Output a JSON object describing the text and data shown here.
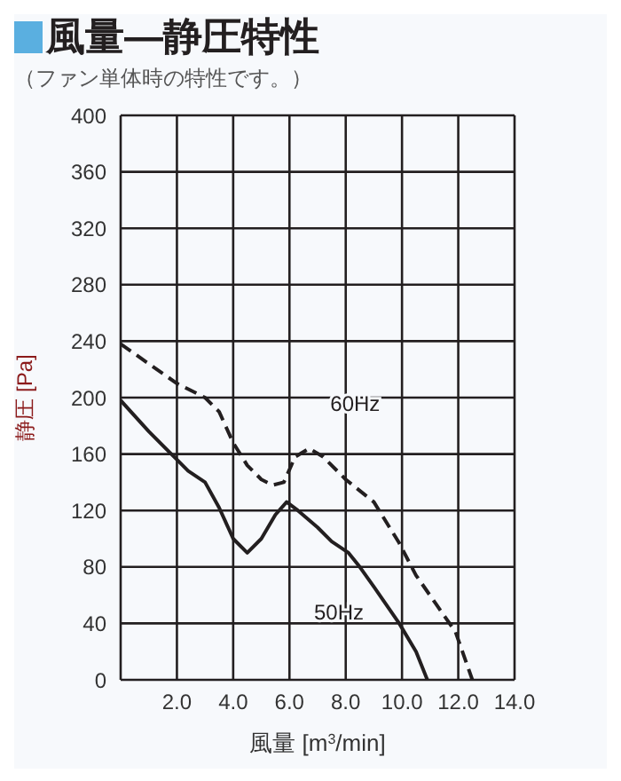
{
  "chart_data": {
    "type": "line",
    "title": "風量—静圧特性",
    "subtitle": "（ファン単体時の特性です。）",
    "xlabel": "風量 [m$^{3}$/min]",
    "ylabel": "静圧 [Pa]",
    "xlim": [
      0,
      14
    ],
    "xticks": [
      {
        "value": 0,
        "label": null
      },
      {
        "value": 2,
        "label": "2.0"
      },
      {
        "value": 4,
        "label": "4.0"
      },
      {
        "value": 6,
        "label": "6.0"
      },
      {
        "value": 8,
        "label": "8.0"
      },
      {
        "value": 10,
        "label": "10.0"
      },
      {
        "value": 12,
        "label": "12.0"
      },
      {
        "value": 14,
        "label": "14.0"
      }
    ],
    "ylim": [
      0,
      400
    ],
    "yticks": [
      0,
      40,
      80,
      120,
      160,
      200,
      240,
      280,
      320,
      360,
      400
    ],
    "grid": true,
    "legend": false,
    "marker": "none",
    "series": [
      {
        "name": "60Hz",
        "color": "#231f20",
        "line_style": "dashed",
        "x": [
          0,
          1,
          2,
          3,
          3.5,
          4,
          4.5,
          5,
          5.4,
          5.8,
          6.2,
          6.7,
          7.2,
          8,
          9,
          9.9,
          10.5,
          11.2,
          11.9,
          12.5
        ],
        "values": [
          238,
          224,
          210,
          200,
          190,
          168,
          152,
          142,
          138,
          140,
          158,
          164,
          158,
          142,
          126,
          97,
          74,
          54,
          34,
          0
        ]
      },
      {
        "name": "50Hz",
        "color": "#231f20",
        "line_style": "solid",
        "x": [
          0,
          1,
          2,
          2.4,
          3,
          3.5,
          4,
          4.5,
          5,
          5.5,
          5.9,
          6.3,
          7,
          7.5,
          8.1,
          8.5,
          9,
          9.9,
          10.5,
          10.9
        ],
        "values": [
          198,
          176,
          156,
          148,
          140,
          122,
          100,
          90,
          100,
          117,
          126,
          120,
          108,
          98,
          90,
          80,
          66,
          40,
          20,
          0
        ]
      }
    ]
  }
}
